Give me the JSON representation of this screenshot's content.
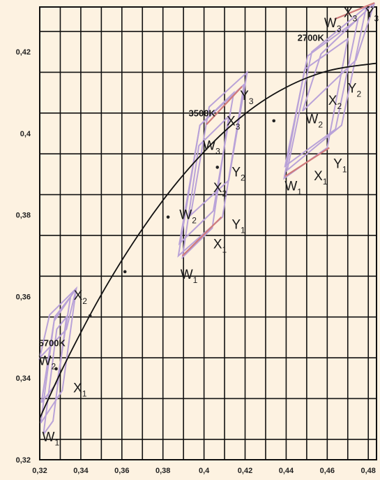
{
  "chart_data": {
    "type": "line",
    "x_ticks": [
      "0,32",
      "0,34",
      "0,36",
      "0,38",
      "0,4",
      "0,42",
      "0,44",
      "0,46",
      "0,48"
    ],
    "y_ticks": [
      "0,32",
      "0,34",
      "0,36",
      "0,38",
      "0,4",
      "0,42"
    ],
    "xlim": [
      0.32,
      0.484
    ],
    "ylim": [
      0.32,
      0.431
    ],
    "grid": true,
    "colors": {
      "background": "#fdf2e1",
      "grid": "#111111",
      "quad": "#b9a2d8",
      "highlight": "#d07a7a",
      "locus": "#111111"
    },
    "locus": {
      "points": [
        [
          0.32,
          0.3302
        ],
        [
          0.33,
          0.3412
        ],
        [
          0.34,
          0.3512
        ],
        [
          0.35,
          0.3605
        ],
        [
          0.36,
          0.3689
        ],
        [
          0.37,
          0.3766
        ],
        [
          0.38,
          0.3836
        ],
        [
          0.39,
          0.3899
        ],
        [
          0.4,
          0.3955
        ],
        [
          0.41,
          0.4005
        ],
        [
          0.42,
          0.4048
        ],
        [
          0.43,
          0.4084
        ],
        [
          0.44,
          0.4113
        ],
        [
          0.45,
          0.4136
        ],
        [
          0.46,
          0.4153
        ],
        [
          0.47,
          0.4163
        ],
        [
          0.484,
          0.4172
        ]
      ]
    },
    "dots": [
      [
        0.3445,
        0.3553
      ],
      [
        0.3615,
        0.3661
      ],
      [
        0.3825,
        0.3795
      ],
      [
        0.4065,
        0.3917
      ],
      [
        0.434,
        0.4031
      ],
      [
        0.328,
        0.3423
      ]
    ],
    "groups": [
      {
        "note": "5700K",
        "note_pos": [
          0.3195,
          0.3478
        ],
        "quads": [
          [
            [
              0.3218,
              0.3262
            ],
            [
              0.3265,
              0.3295
            ],
            [
              0.333,
              0.355
            ],
            [
              0.3283,
              0.352
            ]
          ],
          [
            [
              0.3208,
              0.334
            ],
            [
              0.3285,
              0.339
            ],
            [
              0.335,
              0.36
            ],
            [
              0.3273,
              0.355
            ]
          ],
          [
            [
              0.32,
              0.345
            ],
            [
              0.333,
              0.352
            ],
            [
              0.3378,
              0.362
            ],
            [
              0.3248,
              0.3555
            ]
          ],
          [
            [
              0.3205,
              0.329
            ],
            [
              0.331,
              0.337
            ],
            [
              0.3378,
              0.362
            ],
            [
              0.327,
              0.354
            ]
          ]
        ],
        "highlights": [],
        "labels": [
          {
            "text": "W",
            "sub": "1",
            "pos": [
              0.3212,
              0.3245
            ]
          },
          {
            "text": "W",
            "sub": "2",
            "pos": [
              0.3195,
              0.3432
            ]
          },
          {
            "text": "X",
            "sub": "1",
            "pos": [
              0.3363,
              0.3365
            ]
          },
          {
            "text": "X",
            "sub": "2",
            "pos": [
              0.3365,
              0.3592
            ]
          }
        ]
      },
      {
        "note": "3500K",
        "note_pos": [
          0.3925,
          0.4042
        ],
        "quads": [
          [
            [
              0.3895,
              0.3696
            ],
            [
              0.404,
              0.3768
            ],
            [
              0.412,
              0.4042
            ],
            [
              0.3975,
              0.397
            ]
          ],
          [
            [
              0.388,
              0.373
            ],
            [
              0.4045,
              0.381
            ],
            [
              0.4145,
              0.41
            ],
            [
              0.398,
              0.402
            ]
          ],
          [
            [
              0.3875,
              0.37
            ],
            [
              0.409,
              0.3795
            ],
            [
              0.4195,
              0.412
            ],
            [
              0.398,
              0.402
            ]
          ],
          [
            [
              0.3935,
              0.38
            ],
            [
              0.412,
              0.3885
            ],
            [
              0.421,
              0.415
            ],
            [
              0.4025,
              0.4065
            ]
          ]
        ],
        "highlights": [
          [
            [
              0.3895,
              0.37
            ],
            [
              0.4085,
              0.3795
            ]
          ],
          [
            [
              0.4012,
              0.4022
            ],
            [
              0.4185,
              0.4115
            ]
          ]
        ],
        "labels": [
          {
            "text": "W",
            "sub": "1",
            "pos": [
              0.3885,
              0.3644
            ]
          },
          {
            "text": "W",
            "sub": "2",
            "pos": [
              0.388,
              0.379
            ]
          },
          {
            "text": "W",
            "sub": "3",
            "pos": [
              0.3995,
              0.396
            ]
          },
          {
            "text": "X",
            "sub": "1",
            "pos": [
              0.4045,
              0.3718
            ]
          },
          {
            "text": "X",
            "sub": "2",
            "pos": [
              0.4045,
              0.3856
            ]
          },
          {
            "text": "X",
            "sub": "3",
            "pos": [
              0.411,
              0.402
            ]
          },
          {
            "text": "Y",
            "sub": "1",
            "pos": [
              0.4135,
              0.3766
            ]
          },
          {
            "text": "Y",
            "sub": "2",
            "pos": [
              0.4135,
              0.3895
            ]
          },
          {
            "text": "Y",
            "sub": "3",
            "pos": [
              0.4175,
              0.4082
            ]
          }
        ]
      },
      {
        "note": "2700K",
        "note_pos": [
          0.4455,
          0.4227
        ],
        "quads": [
          [
            [
              0.439,
              0.389
            ],
            [
              0.46,
              0.3965
            ],
            [
              0.47,
              0.4232
            ],
            [
              0.449,
              0.4157
            ]
          ],
          [
            [
              0.4395,
              0.392
            ],
            [
              0.464,
              0.401
            ],
            [
              0.475,
              0.428
            ],
            [
              0.4505,
              0.419
            ]
          ],
          [
            [
              0.4405,
              0.391
            ],
            [
              0.467,
              0.402
            ],
            [
              0.479,
              0.431
            ],
            [
              0.4525,
              0.42
            ]
          ],
          [
            [
              0.448,
              0.4055
            ],
            [
              0.474,
              0.418
            ],
            [
              0.483,
              0.432
            ],
            [
              0.457,
              0.4195
            ]
          ]
        ],
        "highlights": [
          [
            [
              0.4395,
              0.3895
            ],
            [
              0.461,
              0.3965
            ]
          ],
          [
            [
              0.4635,
              0.428
            ],
            [
              0.483,
              0.432
            ]
          ]
        ],
        "labels": [
          {
            "text": "W",
            "sub": "1",
            "pos": [
              0.4393,
              0.386
            ]
          },
          {
            "text": "W",
            "sub": "2",
            "pos": [
              0.4495,
              0.4025
            ]
          },
          {
            "text": "W",
            "sub": "3",
            "pos": [
              0.4585,
              0.426
            ]
          },
          {
            "text": "X",
            "sub": "1",
            "pos": [
              0.4535,
              0.3885
            ]
          },
          {
            "text": "X",
            "sub": "2",
            "pos": [
              0.4605,
              0.407
            ]
          },
          {
            "text": "X",
            "sub": "3",
            "pos": [
              0.468,
              0.4285
            ]
          },
          {
            "text": "Y",
            "sub": "1",
            "pos": [
              0.463,
              0.3915
            ]
          },
          {
            "text": "Y",
            "sub": "2",
            "pos": [
              0.47,
              0.41
            ]
          },
          {
            "text": "Y",
            "sub": "3",
            "pos": [
              0.4785,
              0.4285
            ]
          }
        ]
      }
    ]
  }
}
